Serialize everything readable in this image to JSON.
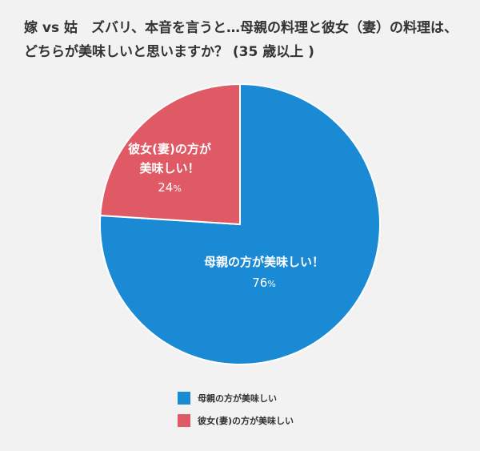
{
  "title": "嫁 vs 姑　ズバリ、本音を言うと…母親の料理と彼女（妻）の料理は、どちらが美味しいと思いますか？ (35 歳以上 )",
  "chart_data": {
    "type": "pie",
    "title": "嫁 vs 姑　ズバリ、本音を言うと…母親の料理と彼女（妻）の料理は、どちらが美味しいと思いますか？ (35 歳以上 )",
    "slices": [
      {
        "label": "母親の方が美味しい！",
        "legend": "母親の方が美味しい",
        "value": 76,
        "value_label": "76",
        "unit": "%",
        "color": "#1a8ad4"
      },
      {
        "label": "彼女(妻)の方が美味しい！",
        "label_lines": [
          "彼女(妻)の方が",
          "美味しい！"
        ],
        "legend": "彼女(妻)の方が美味しい",
        "value": 24,
        "value_label": "24",
        "unit": "%",
        "color": "#e05a66"
      }
    ],
    "start_angle": "12 o'clock",
    "direction": "clockwise",
    "legend_position": "bottom-center"
  }
}
